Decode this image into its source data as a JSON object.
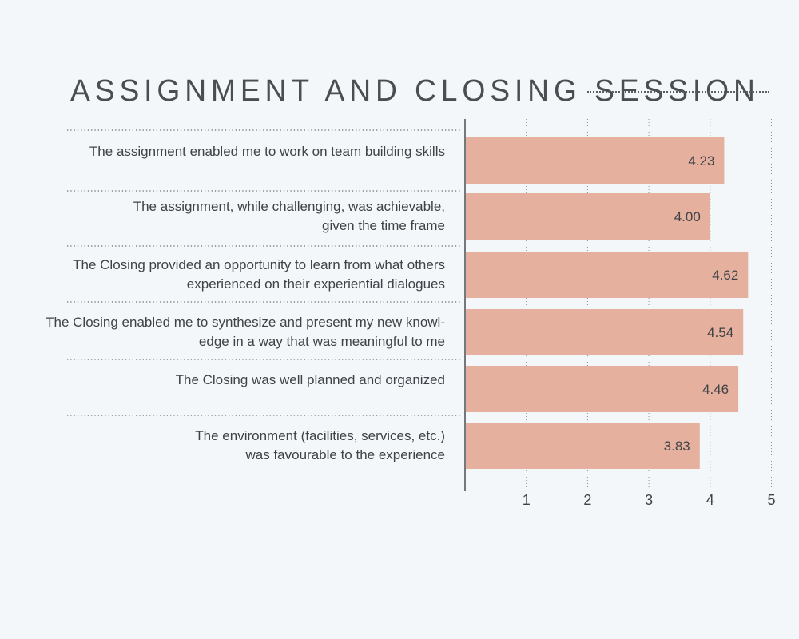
{
  "chart_data": {
    "type": "bar",
    "orientation": "horizontal",
    "title": "ASSIGNMENT AND CLOSING SESSION",
    "categories": [
      [
        "The assignment enabled me to work on team building skills"
      ],
      [
        "The assignment, while challenging, was achievable,",
        "given the time frame"
      ],
      [
        "The Closing provided an opportunity to learn from what others",
        "experienced on their experiential dialogues"
      ],
      [
        "The Closing enabled me to synthesize and present my new knowl-",
        "edge in a way that was meaningful to me"
      ],
      [
        "The Closing was well planned and organized"
      ],
      [
        "The environment (facilities, services, etc.)",
        "was favourable to the experience"
      ]
    ],
    "values": [
      4.23,
      4.0,
      4.62,
      4.54,
      4.46,
      3.83
    ],
    "value_labels": [
      "4.23",
      "4.00",
      "4.62",
      "4.54",
      "4.46",
      "3.83"
    ],
    "xticks": [
      1,
      2,
      3,
      4,
      5
    ],
    "xtick_labels": [
      "1",
      "2",
      "3",
      "4",
      "5"
    ],
    "xlim": [
      0,
      5
    ],
    "grid": true,
    "bar_color": "#e6b09e",
    "text_color": "#3f4247",
    "xlabel": "",
    "ylabel": ""
  }
}
